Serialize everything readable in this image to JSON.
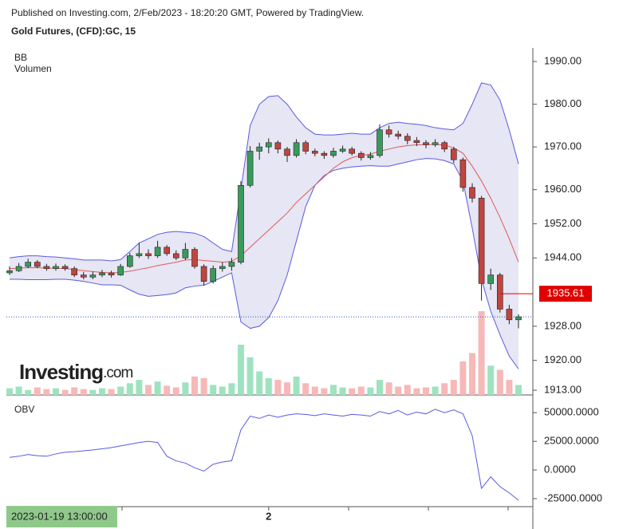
{
  "header": {
    "published": "Published on Investing.com, 2/Feb/2023 - 18:20:20 GMT, Powered by TradingView.",
    "symbol": "Gold Futures, (CFD):GC, 15",
    "logo_main": "Investing",
    "logo_suffix": ".com"
  },
  "chart_data": [
    {
      "type": "candlestick",
      "indicator_labels": [
        "BB",
        "Volumen"
      ],
      "categories": [
        null,
        null,
        null,
        null,
        null,
        null,
        null,
        null,
        null,
        null,
        null,
        null,
        null,
        null,
        null,
        null,
        null,
        null,
        null,
        null,
        null,
        null,
        null,
        null,
        null,
        null,
        null,
        null,
        "2",
        null,
        null,
        null,
        null,
        null,
        null,
        null,
        null,
        null,
        null,
        null,
        null,
        null,
        null,
        null,
        null,
        null,
        null,
        null,
        null,
        null,
        null,
        null,
        null,
        null,
        null,
        null
      ],
      "open": [
        1940.5,
        1941,
        1942,
        1943,
        1942,
        1941.5,
        1942,
        1941.5,
        1940,
        1939.5,
        1940,
        1940.5,
        1940,
        1942,
        1944.5,
        1945,
        1944.5,
        1946.5,
        1945,
        1944,
        1946,
        1942,
        1938.5,
        1941.5,
        1942,
        1943,
        1961,
        1969,
        1970,
        1971,
        1969.5,
        1968,
        1971,
        1969,
        1968.5,
        1968,
        1969,
        1969.5,
        1968.5,
        1967.5,
        1968,
        1974,
        1973,
        1972.5,
        1971.5,
        1971,
        1970.5,
        1971,
        1969.5,
        1967,
        1960.5,
        1958,
        1938,
        1940,
        1932,
        1929.5
      ],
      "high": [
        1942,
        1942.8,
        1943.8,
        1943.5,
        1942.6,
        1942.7,
        1942.5,
        1942,
        1940.7,
        1940.8,
        1941.2,
        1941,
        1942.6,
        1945.2,
        1947.5,
        1946,
        1948,
        1947,
        1945.8,
        1947.5,
        1946.5,
        1942.5,
        1942.2,
        1943,
        1944,
        1962,
        1970.2,
        1971,
        1972,
        1971.5,
        1970,
        1971.8,
        1971.5,
        1969.6,
        1969,
        1969.8,
        1970.3,
        1970,
        1969,
        1968.8,
        1975.3,
        1975,
        1973.8,
        1973.2,
        1972.3,
        1971.6,
        1971.8,
        1971.4,
        1970,
        1967.5,
        1961.5,
        1958.5,
        1941.5,
        1940.5,
        1933,
        1930.8
      ],
      "low": [
        1940,
        1940.7,
        1941.6,
        1941.6,
        1941,
        1941,
        1941,
        1939.5,
        1939,
        1939,
        1939.5,
        1939.4,
        1939.8,
        1941.7,
        1944,
        1943.8,
        1944,
        1944.5,
        1943.5,
        1943.5,
        1941.5,
        1937.5,
        1938,
        1940.8,
        1941,
        1942.5,
        1960.5,
        1967,
        1968.5,
        1968.5,
        1966.5,
        1967.5,
        1968.3,
        1967.8,
        1967.2,
        1967.5,
        1968.6,
        1968,
        1966.8,
        1967,
        1967.5,
        1972.2,
        1971.8,
        1970.6,
        1970.2,
        1969.7,
        1970,
        1968.8,
        1966.2,
        1959.5,
        1957,
        1934,
        1936.5,
        1931.2,
        1928.5,
        1927.5
      ],
      "close": [
        1941,
        1942,
        1943,
        1942,
        1941.5,
        1942,
        1941.5,
        1940,
        1939.5,
        1940,
        1940.5,
        1940,
        1942,
        1944.5,
        1945,
        1944.5,
        1946.5,
        1945,
        1944,
        1946,
        1942,
        1938.5,
        1941.5,
        1942,
        1943,
        1961,
        1969,
        1970,
        1971,
        1969.5,
        1968,
        1971,
        1969,
        1968.5,
        1968,
        1969,
        1969.5,
        1968.5,
        1967.5,
        1968,
        1974,
        1973,
        1972.5,
        1971.5,
        1971,
        1970.5,
        1971,
        1969.5,
        1967,
        1960.5,
        1958,
        1938,
        1940,
        1932,
        1929.5,
        1930.2
      ],
      "bb_upper": [
        1944,
        1944.3,
        1944.5,
        1944.5,
        1944.3,
        1944.2,
        1944,
        1943.8,
        1943.5,
        1943.5,
        1943.5,
        1943.3,
        1943.6,
        1945.5,
        1947.5,
        1948.5,
        1949.5,
        1950,
        1950.2,
        1950,
        1949.8,
        1949,
        1947.5,
        1946,
        1945.5,
        1960,
        1975,
        1980,
        1981.8,
        1982,
        1980,
        1977,
        1974.5,
        1973,
        1972.8,
        1972.8,
        1973,
        1973.2,
        1973,
        1973,
        1974.5,
        1975.5,
        1975.8,
        1975.5,
        1975.3,
        1975,
        1974.5,
        1974.2,
        1974,
        1975.5,
        1980,
        1985,
        1984.5,
        1981,
        1974,
        1966
      ],
      "bb_middle": [
        1941.5,
        1941.6,
        1941.7,
        1941.7,
        1941.6,
        1941.6,
        1941.5,
        1941.3,
        1941,
        1940.8,
        1940.6,
        1940.5,
        1940.6,
        1940.9,
        1941.3,
        1941.7,
        1942.2,
        1942.6,
        1943,
        1943.5,
        1943.6,
        1943.4,
        1943.2,
        1943,
        1943.2,
        1944.5,
        1946.5,
        1948.5,
        1950.5,
        1952.5,
        1954.5,
        1957,
        1959,
        1961,
        1963,
        1965,
        1966.5,
        1967.5,
        1968,
        1968.3,
        1969,
        1969.5,
        1970,
        1970.3,
        1970.5,
        1970.5,
        1970.6,
        1970.4,
        1969.8,
        1968.5,
        1965.5,
        1962,
        1958,
        1953.5,
        1948.5,
        1943
      ],
      "bb_lower": [
        1939,
        1939,
        1938.9,
        1938.9,
        1938.9,
        1939,
        1939,
        1938.8,
        1938.5,
        1938.1,
        1937.7,
        1937.7,
        1937.6,
        1936.5,
        1935.5,
        1935,
        1935.2,
        1935.4,
        1935.8,
        1937,
        1937.4,
        1937.6,
        1938.5,
        1939.5,
        1940.5,
        1929,
        1927.5,
        1928,
        1930,
        1934,
        1940,
        1948,
        1956,
        1961,
        1963.3,
        1964.5,
        1965,
        1965.3,
        1965.5,
        1965.6,
        1965.5,
        1965.5,
        1966,
        1966.5,
        1967,
        1967.3,
        1967.2,
        1966.8,
        1966,
        1962,
        1951,
        1939,
        1931.5,
        1926,
        1921,
        1918
      ],
      "volume": [
        8,
        10,
        6,
        9,
        7,
        8,
        6,
        9,
        7,
        6,
        8,
        7,
        10,
        14,
        18,
        12,
        16,
        11,
        9,
        15,
        22,
        20,
        12,
        10,
        14,
        60,
        45,
        28,
        20,
        18,
        15,
        22,
        14,
        10,
        8,
        12,
        9,
        8,
        10,
        9,
        18,
        15,
        10,
        12,
        8,
        9,
        10,
        14,
        18,
        40,
        50,
        100,
        35,
        30,
        18,
        12
      ],
      "up_color": "#3a9a5c",
      "down_color": "#c0453f",
      "up_volume_color": "#9fe2c0",
      "down_volume_color": "#f7b8b8",
      "band_color": "#5a5ae0",
      "band_fill": "#e2e2f2",
      "middle_color": "#e05a5a",
      "last_price": 1935.61,
      "crosshair_label": "2023-01-19 13:00:00",
      "ylim": [
        1911.9,
        1993.2
      ],
      "yticks": [
        {
          "value": 1990,
          "label": "1990.00"
        },
        {
          "value": 1980,
          "label": "1980.00"
        },
        {
          "value": 1970,
          "label": "1970.00"
        },
        {
          "value": 1960,
          "label": "1960.00"
        },
        {
          "value": 1952,
          "label": "1952.00"
        },
        {
          "value": 1944,
          "label": "1944.00"
        },
        {
          "value": 1928,
          "label": "1928.00"
        },
        {
          "value": 1920,
          "label": "1920.00"
        },
        {
          "value": 1913,
          "label": "1913.00"
        }
      ]
    },
    {
      "type": "line",
      "title": "OBV",
      "color": "#5a5ae0",
      "values": [
        11000,
        12000,
        13500,
        12500,
        12000,
        14000,
        15500,
        16000,
        16700,
        17500,
        18500,
        19500,
        21000,
        22500,
        24000,
        25000,
        24000,
        12000,
        8000,
        6000,
        2000,
        -1000,
        5000,
        7000,
        8000,
        35000,
        47000,
        45000,
        48000,
        46000,
        48000,
        49000,
        48500,
        47500,
        49000,
        48000,
        47000,
        48500,
        48000,
        47000,
        51000,
        49000,
        52000,
        48000,
        50500,
        49000,
        53000,
        50000,
        52500,
        49000,
        30000,
        -16000,
        -6000,
        -14500,
        -20000,
        -26400
      ],
      "ylim": [
        -32000,
        62000
      ],
      "yticks": [
        {
          "value": 50000,
          "label": "50000.0000"
        },
        {
          "value": 25000,
          "label": "25000.0000"
        },
        {
          "value": 0,
          "label": "0.0000"
        },
        {
          "value": -25000,
          "label": "-25000.0000"
        }
      ]
    }
  ]
}
